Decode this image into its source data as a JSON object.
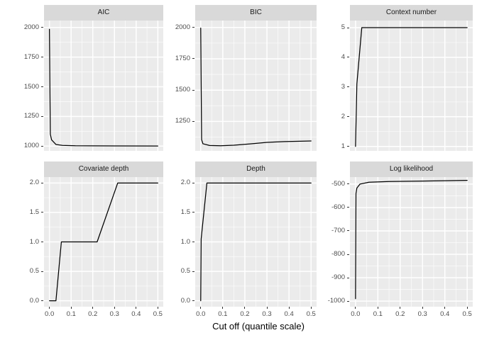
{
  "chart_data": {
    "type": "line",
    "title": "",
    "xlabel": "Cut off (quantile scale)",
    "grid": true,
    "legend": "none",
    "xlim": [
      -0.025,
      0.525
    ],
    "x_ticks": {
      "values": [
        0,
        0.1,
        0.2,
        0.3,
        0.4,
        0.5
      ],
      "labels": [
        "0.0",
        "0.1",
        "0.2",
        "0.3",
        "0.4",
        "0.5"
      ],
      "minor": [
        0.05,
        0.15,
        0.25,
        0.35,
        0.45
      ]
    },
    "facets": [
      {
        "title": "AIC",
        "ylim": [
          960,
          2058
        ],
        "y_ticks": {
          "values": [
            1000,
            1250,
            1500,
            1750,
            2000
          ],
          "labels": [
            "1000",
            "1250",
            "1500",
            "1750",
            "2000"
          ],
          "minor": [
            1125,
            1375,
            1625,
            1875
          ]
        },
        "points": [
          [
            0,
            1985
          ],
          [
            0.004,
            1100
          ],
          [
            0.01,
            1053
          ],
          [
            0.03,
            1014
          ],
          [
            0.06,
            1006
          ],
          [
            0.12,
            1003
          ],
          [
            0.3,
            1002
          ],
          [
            0.5,
            1001
          ]
        ]
      },
      {
        "title": "BIC",
        "ylim": [
          1015,
          2055
        ],
        "y_ticks": {
          "values": [
            1250,
            1500,
            1750,
            2000
          ],
          "labels": [
            "1250",
            "1500",
            "1750",
            "2000"
          ],
          "minor": [
            1125,
            1375,
            1625,
            1875
          ]
        },
        "points": [
          [
            0,
            1995
          ],
          [
            0.004,
            1105
          ],
          [
            0.01,
            1072
          ],
          [
            0.04,
            1058
          ],
          [
            0.09,
            1056
          ],
          [
            0.15,
            1060
          ],
          [
            0.22,
            1070
          ],
          [
            0.3,
            1083
          ],
          [
            0.38,
            1089
          ],
          [
            0.45,
            1092
          ],
          [
            0.5,
            1094
          ]
        ]
      },
      {
        "title": "Context number",
        "ylim": [
          0.85,
          5.24
        ],
        "y_ticks": {
          "values": [
            1,
            2,
            3,
            4,
            5
          ],
          "labels": [
            "1",
            "2",
            "3",
            "4",
            "5"
          ],
          "minor": [
            1.5,
            2.5,
            3.5,
            4.5
          ]
        },
        "points": [
          [
            0,
            1
          ],
          [
            0.006,
            3.1
          ],
          [
            0.028,
            5
          ],
          [
            0.5,
            5
          ]
        ]
      },
      {
        "title": "Covariate depth",
        "ylim": [
          -0.1,
          2.1
        ],
        "y_ticks": {
          "values": [
            0,
            0.5,
            1,
            1.5,
            2
          ],
          "labels": [
            "0.0",
            "0.5",
            "1.0",
            "1.5",
            "2.0"
          ],
          "minor": [
            0.25,
            0.75,
            1.25,
            1.75
          ]
        },
        "points": [
          [
            0,
            0
          ],
          [
            0.03,
            0
          ],
          [
            0.055,
            1
          ],
          [
            0.22,
            1
          ],
          [
            0.315,
            2
          ],
          [
            0.5,
            2
          ]
        ]
      },
      {
        "title": "Depth",
        "ylim": [
          -0.1,
          2.1
        ],
        "y_ticks": {
          "values": [
            0,
            0.5,
            1,
            1.5,
            2
          ],
          "labels": [
            "0.0",
            "0.5",
            "1.0",
            "1.5",
            "2.0"
          ],
          "minor": [
            0.25,
            0.75,
            1.25,
            1.75
          ]
        },
        "points": [
          [
            0,
            0
          ],
          [
            0.002,
            1.05
          ],
          [
            0.028,
            2
          ],
          [
            0.5,
            2
          ]
        ]
      },
      {
        "title": "Log likelihood",
        "ylim": [
          -1024,
          -470
        ],
        "y_ticks": {
          "values": [
            -1000,
            -900,
            -800,
            -700,
            -600,
            -500
          ],
          "labels": [
            "-1000",
            "-900",
            "-800",
            "-700",
            "-600",
            "-500"
          ],
          "minor": [
            -950,
            -850,
            -750,
            -650,
            -550
          ]
        },
        "points": [
          [
            0,
            -990
          ],
          [
            0.002,
            -540
          ],
          [
            0.006,
            -517
          ],
          [
            0.02,
            -500
          ],
          [
            0.06,
            -492
          ],
          [
            0.15,
            -489
          ],
          [
            0.3,
            -487
          ],
          [
            0.5,
            -484
          ]
        ]
      }
    ]
  },
  "colors": {
    "background": "#FFFFFF",
    "panel_bg": "#EBEBEB",
    "strip_bg": "#D9D9D9",
    "grid_major": "#FFFFFF",
    "grid_minor": "#FFFFFF",
    "axis_text": "#4D4D4D",
    "strip_text": "#1A1A1A",
    "line": "#000000",
    "tick": "#333333"
  }
}
